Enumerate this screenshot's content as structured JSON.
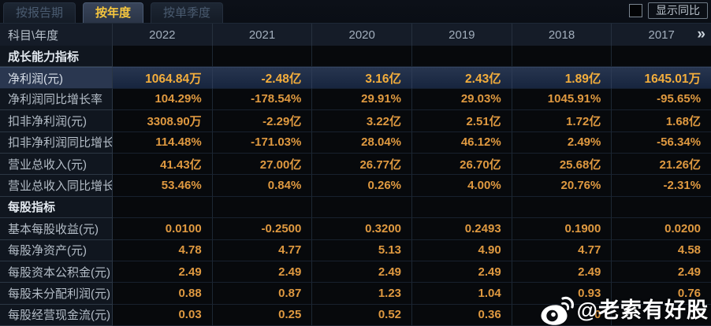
{
  "tabbar": {
    "tabs": [
      {
        "label": "按报告期",
        "active": false
      },
      {
        "label": "按年度",
        "active": true
      },
      {
        "label": "按单季度",
        "active": false
      }
    ],
    "show_yoy": {
      "label": "显示同比",
      "checked": false
    }
  },
  "table": {
    "corner_label": "科目\\年度",
    "years": [
      "2022",
      "2021",
      "2020",
      "2019",
      "2018",
      "2017"
    ],
    "more_years_icon": "»",
    "rows": [
      {
        "type": "section",
        "label": "成长能力指标",
        "values": [
          "",
          "",
          "",
          "",
          "",
          ""
        ]
      },
      {
        "type": "data",
        "highlight": true,
        "label": "净利润(元)",
        "values": [
          "1064.84万",
          "-2.48亿",
          "3.16亿",
          "2.43亿",
          "1.89亿",
          "1645.01万"
        ]
      },
      {
        "type": "data",
        "label": "净利润同比增长率",
        "values": [
          "104.29%",
          "-178.54%",
          "29.91%",
          "29.03%",
          "1045.91%",
          "-95.65%"
        ]
      },
      {
        "type": "data",
        "label": "扣非净利润(元)",
        "values": [
          "3308.90万",
          "-2.29亿",
          "3.22亿",
          "2.51亿",
          "1.72亿",
          "1.68亿"
        ]
      },
      {
        "type": "data",
        "label": "扣非净利润同比增长率",
        "values": [
          "114.48%",
          "-171.03%",
          "28.04%",
          "46.12%",
          "2.49%",
          "-56.34%"
        ]
      },
      {
        "type": "data",
        "label": "营业总收入(元)",
        "values": [
          "41.43亿",
          "27.00亿",
          "26.77亿",
          "26.70亿",
          "25.68亿",
          "21.26亿"
        ]
      },
      {
        "type": "data",
        "label": "营业总收入同比增长率",
        "values": [
          "53.46%",
          "0.84%",
          "0.26%",
          "4.00%",
          "20.76%",
          "-2.31%"
        ]
      },
      {
        "type": "section",
        "label": "每股指标",
        "values": [
          "",
          "",
          "",
          "",
          "",
          ""
        ]
      },
      {
        "type": "data",
        "label": "基本每股收益(元)",
        "values": [
          "0.0100",
          "-0.2500",
          "0.3200",
          "0.2493",
          "0.1900",
          "0.0200"
        ]
      },
      {
        "type": "data",
        "label": "每股净资产(元)",
        "values": [
          "4.78",
          "4.77",
          "5.13",
          "4.90",
          "4.77",
          "4.58"
        ]
      },
      {
        "type": "data",
        "label": "每股资本公积金(元)",
        "values": [
          "2.49",
          "2.49",
          "2.49",
          "2.49",
          "2.49",
          "2.49"
        ]
      },
      {
        "type": "data",
        "label": "每股未分配利润(元)",
        "values": [
          "0.88",
          "0.87",
          "1.23",
          "1.04",
          "0.93",
          "0.76"
        ]
      },
      {
        "type": "data",
        "label": "每股经营现金流(元)",
        "values": [
          "0.03",
          "0.25",
          "0.52",
          "0.36",
          "0",
          ""
        ]
      }
    ]
  },
  "watermark": {
    "icon": "weibo-logo",
    "text": "@老索有好股"
  },
  "colors": {
    "accent_gold": "#f6c63e",
    "value_orange": "#df9940",
    "highlight_value": "#f2ad3c",
    "highlight_row_bg": "#1c2941",
    "table_bg": "#07090c",
    "label_col_bg": "#10161f"
  }
}
